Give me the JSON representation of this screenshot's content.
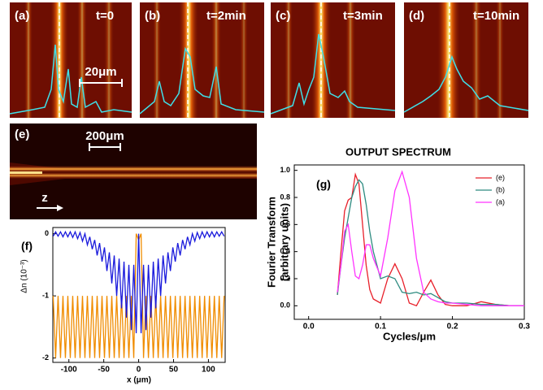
{
  "image_panels": [
    {
      "label": "(a)",
      "time": "t=0",
      "scale_bar": "20μm"
    },
    {
      "label": "(b)",
      "time": "t=2min"
    },
    {
      "label": "(c)",
      "time": "t=3min"
    },
    {
      "label": "(d)",
      "time": "t=10min"
    },
    {
      "label": "(e)",
      "scale_bar": "200μm",
      "axis": "z"
    }
  ],
  "chart_data": [
    {
      "type": "line",
      "panel_label": "(f)",
      "xlabel": "x (μm)",
      "ylabel": "Δn (10⁻³)",
      "xlim": [
        -123,
        124
      ],
      "ylim": [
        -2.07,
        0.1
      ],
      "xticks": [
        -100,
        -50,
        0,
        50,
        100
      ],
      "yticks": [
        -2,
        -1,
        0
      ],
      "x": [
        -122.5,
        -119,
        -115.5,
        -112,
        -108.5,
        -105,
        -101.5,
        -98,
        -94.5,
        -91,
        -87.5,
        -84,
        -80.5,
        -77,
        -73.5,
        -70,
        -66.5,
        -63,
        -59.5,
        -56,
        -52.5,
        -49,
        -45.5,
        -42,
        -38.5,
        -35,
        -31.5,
        -28,
        -24.5,
        -21,
        -17.5,
        -14,
        -10.5,
        -7,
        -3.5,
        0,
        3.5,
        7,
        10.5,
        14,
        17.5,
        21,
        24.5,
        28,
        31.5,
        35,
        38.5,
        42,
        45.5,
        49,
        52.5,
        56,
        59.5,
        63,
        66.5,
        70,
        73.5,
        77,
        80.5,
        84,
        87.5,
        91,
        94.5,
        98,
        101.5,
        105,
        108.5,
        112,
        115.5,
        119,
        122.5
      ],
      "series": [
        {
          "color": "#f08c00",
          "values": [
            -1,
            -2,
            -1,
            -2,
            -1,
            -2,
            -1,
            -2,
            -1,
            -2,
            -1,
            -2,
            -1,
            -2,
            -1,
            -2,
            -1,
            -2,
            -1,
            -2,
            -1,
            -2,
            -1,
            -2,
            -1,
            -2,
            -1,
            -2,
            -1,
            -2,
            -1,
            -2,
            -1,
            -2,
            0,
            -0.1,
            0,
            -2,
            -1,
            -2,
            -1,
            -2,
            -1,
            -2,
            -1,
            -2,
            -1,
            -2,
            -1,
            -2,
            -1,
            -2,
            -1,
            -2,
            -1,
            -2,
            -1,
            -2,
            -1,
            -2,
            -1,
            -2,
            -1,
            -2,
            -1,
            -2,
            -1,
            -2,
            -1,
            -2,
            -1
          ]
        },
        {
          "color": "#1a1adc",
          "values": [
            -0.04,
            0.03,
            -0.04,
            0.03,
            -0.05,
            0.03,
            -0.05,
            0.03,
            -0.06,
            0.03,
            -0.08,
            0.02,
            -0.12,
            0,
            -0.18,
            -0.05,
            -0.25,
            -0.1,
            -0.35,
            -0.15,
            -0.45,
            -0.22,
            -0.6,
            -0.3,
            -0.8,
            -0.35,
            -1.0,
            -0.4,
            -1.2,
            -0.45,
            -1.35,
            -0.5,
            -1.55,
            -0.5,
            -1.6,
            0,
            -1.6,
            -0.5,
            -1.55,
            -0.5,
            -1.35,
            -0.45,
            -1.2,
            -0.4,
            -1.0,
            -0.35,
            -0.8,
            -0.3,
            -0.6,
            -0.22,
            -0.45,
            -0.15,
            -0.35,
            -0.1,
            -0.25,
            -0.05,
            -0.18,
            0,
            -0.12,
            0.02,
            -0.08,
            0.03,
            -0.06,
            0.03,
            -0.05,
            0.03,
            -0.05,
            0.03,
            -0.04,
            0.03,
            -0.04
          ]
        }
      ]
    },
    {
      "type": "line",
      "title": "OUTPUT SPECTRUM",
      "panel_label": "(g)",
      "xlabel": "Cycles/μm",
      "ylabel": [
        "Fourier Transform",
        "(arbitrary units)"
      ],
      "xlim": [
        -0.02,
        0.3
      ],
      "ylim": [
        -0.1,
        1.04
      ],
      "xticks": [
        {
          "value": 0,
          "label": "0.0"
        },
        0.1,
        0.2,
        0.3
      ],
      "yticks": [
        {
          "value": 0,
          "label": "0.0"
        },
        0.2,
        0.4,
        0.6,
        0.8,
        {
          "value": 1,
          "label": "1.0"
        }
      ],
      "legend": "upper right",
      "x": [
        0.04,
        0.045,
        0.05,
        0.055,
        0.06,
        0.065,
        0.07,
        0.075,
        0.08,
        0.085,
        0.09,
        0.1,
        0.11,
        0.12,
        0.13,
        0.14,
        0.15,
        0.16,
        0.17,
        0.18,
        0.19,
        0.2,
        0.22,
        0.24,
        0.26,
        0.28,
        0.3
      ],
      "series": [
        {
          "name": "(e)",
          "color": "#e8202a",
          "values": [
            0.08,
            0.4,
            0.7,
            0.78,
            0.8,
            0.97,
            0.9,
            0.6,
            0.3,
            0.12,
            0.05,
            0.02,
            0.2,
            0.31,
            0.2,
            0.02,
            0,
            0.1,
            0.19,
            0.08,
            0.01,
            0,
            0,
            0.03,
            0.01,
            0,
            0
          ]
        },
        {
          "name": "(b)",
          "color": "#2e8b80",
          "values": [
            0.08,
            0.3,
            0.5,
            0.65,
            0.8,
            0.88,
            0.93,
            0.9,
            0.75,
            0.55,
            0.4,
            0.2,
            0.22,
            0.2,
            0.1,
            0.09,
            0.1,
            0.08,
            0.09,
            0.06,
            0.03,
            0.02,
            0.02,
            0.01,
            0.01,
            0,
            0
          ]
        },
        {
          "name": "(a)",
          "color": "#ff33ff",
          "values": [
            0.1,
            0.3,
            0.55,
            0.6,
            0.4,
            0.22,
            0.2,
            0.3,
            0.45,
            0.45,
            0.35,
            0.22,
            0.5,
            0.85,
            0.99,
            0.8,
            0.35,
            0.1,
            0.05,
            0.03,
            0.02,
            0.02,
            0.01,
            0,
            0,
            0,
            0
          ]
        }
      ]
    }
  ]
}
